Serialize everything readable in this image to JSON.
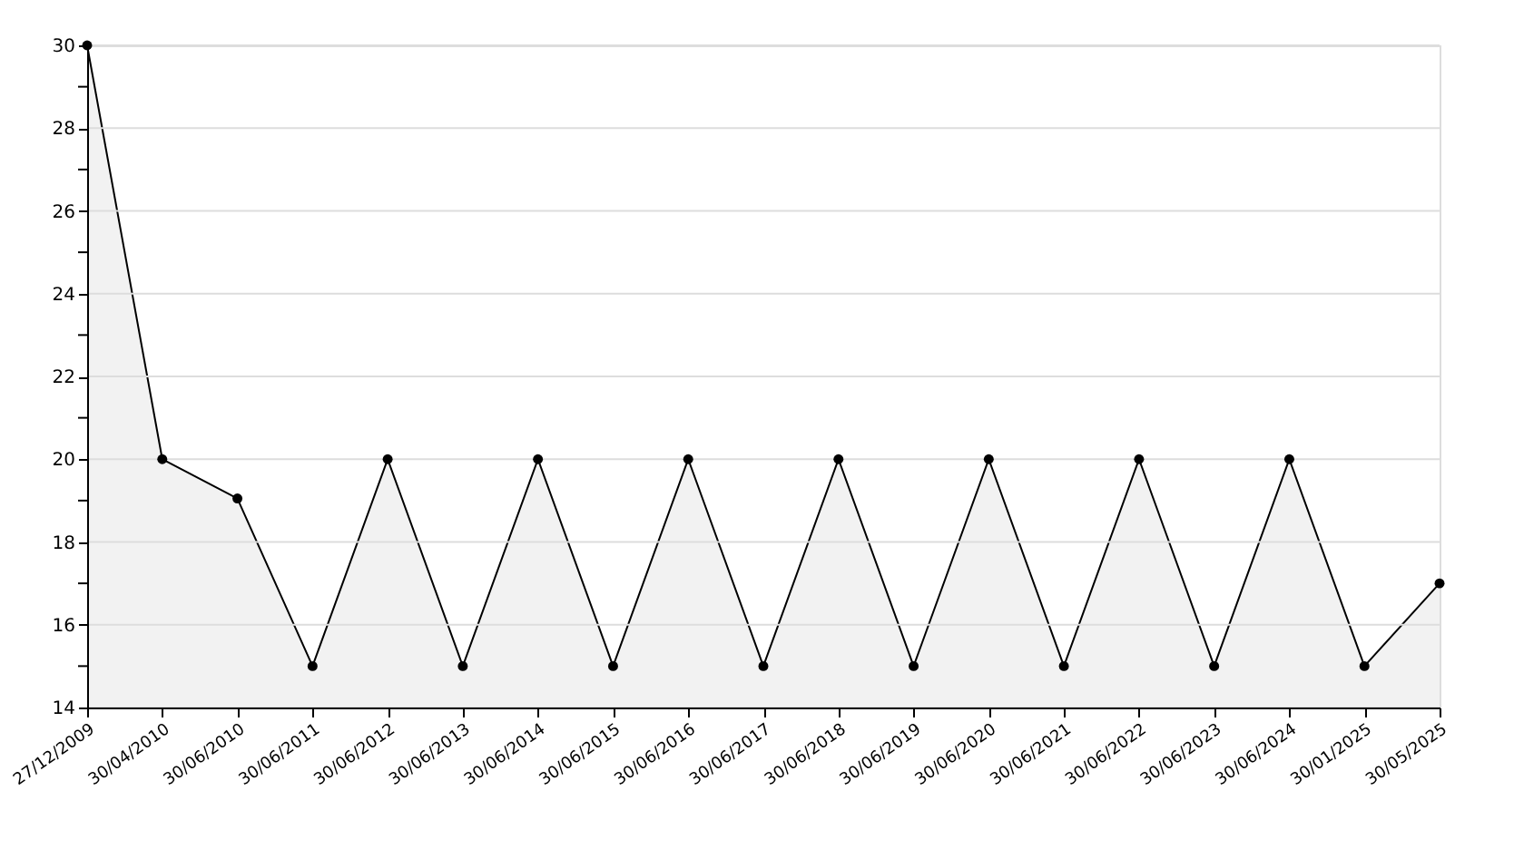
{
  "chart_data": {
    "type": "area",
    "categories": [
      "27/12/2009",
      "30/04/2010",
      "30/06/2010",
      "30/06/2011",
      "30/06/2012",
      "30/06/2013",
      "30/06/2014",
      "30/06/2015",
      "30/06/2016",
      "30/06/2017",
      "30/06/2018",
      "30/06/2019",
      "30/06/2020",
      "30/06/2021",
      "30/06/2022",
      "30/06/2023",
      "30/06/2024",
      "30/01/2025",
      "30/05/2025"
    ],
    "series": [
      {
        "color": "#000000",
        "values": [
          30,
          20,
          19.05,
          15,
          20,
          15,
          20,
          15,
          20,
          15,
          20,
          15,
          20,
          15,
          20,
          15,
          20,
          15,
          17
        ]
      }
    ],
    "ylim": [
      14,
      30
    ],
    "yticks": [
      14,
      {
        "value": 15,
        "label": null
      },
      16,
      {
        "value": 17,
        "label": null
      },
      18,
      {
        "value": 19,
        "label": null
      },
      20,
      {
        "value": 21,
        "label": null
      },
      22,
      {
        "value": 23,
        "label": null
      },
      24,
      {
        "value": 25,
        "label": null
      },
      26,
      {
        "value": 27,
        "label": null
      },
      28,
      {
        "value": 29,
        "label": null
      },
      30
    ],
    "grid": "y",
    "marker": "circle",
    "line_style": "solid"
  }
}
